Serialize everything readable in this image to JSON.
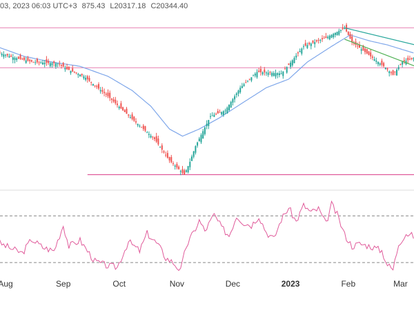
{
  "header": {
    "timestamp": "03, 2023 06:03 UTC+3",
    "high": "875.43",
    "low": "L20317.18",
    "close": "C20344.40"
  },
  "colors": {
    "up": "#26a69a",
    "down": "#ef5350",
    "ma": "#7fa7ea",
    "hline": "#e05a9a",
    "channel_top": "#26a69a",
    "channel_bottom": "#4caf50",
    "rsi": "#e05a9a",
    "rsi_bound": "#888888",
    "separator": "#dddddd"
  },
  "chart_data": {
    "type": "candlestick",
    "x_ticks": [
      {
        "label": "Aug",
        "day": 0
      },
      {
        "label": "Sep",
        "day": 31
      },
      {
        "label": "Oct",
        "day": 61
      },
      {
        "label": "Nov",
        "day": 92
      },
      {
        "label": "Dec",
        "day": 122
      },
      {
        "label": "2023",
        "day": 153,
        "bold": true
      },
      {
        "label": "Feb",
        "day": 184
      },
      {
        "label": "Mar",
        "day": 212
      }
    ],
    "price_ylim": [
      20000,
      31600
    ],
    "price_anchors": [
      [
        -5,
        29300
      ],
      [
        5,
        28900
      ],
      [
        15,
        28600
      ],
      [
        28,
        28500
      ],
      [
        33,
        28100
      ],
      [
        42,
        27600
      ],
      [
        55,
        26200
      ],
      [
        68,
        24600
      ],
      [
        80,
        23200
      ],
      [
        88,
        21700
      ],
      [
        96,
        20700
      ],
      [
        99,
        21600
      ],
      [
        102,
        22700
      ],
      [
        110,
        24800
      ],
      [
        118,
        25200
      ],
      [
        122,
        26000
      ],
      [
        126,
        26800
      ],
      [
        135,
        27900
      ],
      [
        148,
        27800
      ],
      [
        152,
        28400
      ],
      [
        160,
        29700
      ],
      [
        172,
        30300
      ],
      [
        182,
        31000
      ],
      [
        186,
        30000
      ],
      [
        196,
        29000
      ],
      [
        204,
        28200
      ],
      [
        208,
        27700
      ],
      [
        213,
        28600
      ],
      [
        220,
        28900
      ]
    ],
    "ma_anchors": [
      [
        -5,
        29700
      ],
      [
        10,
        29000
      ],
      [
        25,
        28600
      ],
      [
        40,
        28300
      ],
      [
        55,
        27600
      ],
      [
        68,
        26600
      ],
      [
        78,
        25500
      ],
      [
        88,
        23900
      ],
      [
        95,
        23400
      ],
      [
        104,
        23900
      ],
      [
        115,
        24700
      ],
      [
        128,
        25800
      ],
      [
        140,
        26800
      ],
      [
        152,
        27400
      ],
      [
        162,
        28600
      ],
      [
        175,
        29700
      ],
      [
        185,
        30500
      ],
      [
        195,
        30100
      ],
      [
        205,
        29800
      ],
      [
        220,
        29200
      ]
    ],
    "horizontal_levels": [
      31000,
      28200
    ],
    "support_level": 20700,
    "channel_top": {
      "from": [
        182,
        31000
      ],
      "to": [
        220,
        29800
      ]
    },
    "channel_bottom": {
      "from": [
        182,
        30200
      ],
      "to": [
        220,
        28300
      ]
    },
    "rsi_ylim": [
      20,
      85
    ],
    "rsi_bounds": [
      70,
      30
    ],
    "rsi_anchors": [
      [
        -5,
        48
      ],
      [
        3,
        42
      ],
      [
        9,
        38
      ],
      [
        14,
        50
      ],
      [
        20,
        43
      ],
      [
        26,
        40
      ],
      [
        31,
        62
      ],
      [
        34,
        44
      ],
      [
        40,
        49
      ],
      [
        48,
        31
      ],
      [
        55,
        27
      ],
      [
        60,
        26
      ],
      [
        66,
        48
      ],
      [
        72,
        40
      ],
      [
        76,
        55
      ],
      [
        82,
        45
      ],
      [
        86,
        34
      ],
      [
        90,
        30
      ],
      [
        94,
        23
      ],
      [
        97,
        44
      ],
      [
        101,
        56
      ],
      [
        104,
        66
      ],
      [
        107,
        57
      ],
      [
        112,
        71
      ],
      [
        116,
        60
      ],
      [
        120,
        53
      ],
      [
        124,
        70
      ],
      [
        128,
        64
      ],
      [
        132,
        62
      ],
      [
        136,
        70
      ],
      [
        140,
        56
      ],
      [
        144,
        50
      ],
      [
        148,
        67
      ],
      [
        152,
        77
      ],
      [
        156,
        65
      ],
      [
        160,
        79
      ],
      [
        164,
        73
      ],
      [
        168,
        76
      ],
      [
        172,
        63
      ],
      [
        175,
        80
      ],
      [
        178,
        71
      ],
      [
        182,
        54
      ],
      [
        186,
        44
      ],
      [
        190,
        46
      ],
      [
        196,
        44
      ],
      [
        202,
        40
      ],
      [
        205,
        28
      ],
      [
        208,
        24
      ],
      [
        211,
        46
      ],
      [
        215,
        55
      ],
      [
        220,
        52
      ]
    ]
  }
}
